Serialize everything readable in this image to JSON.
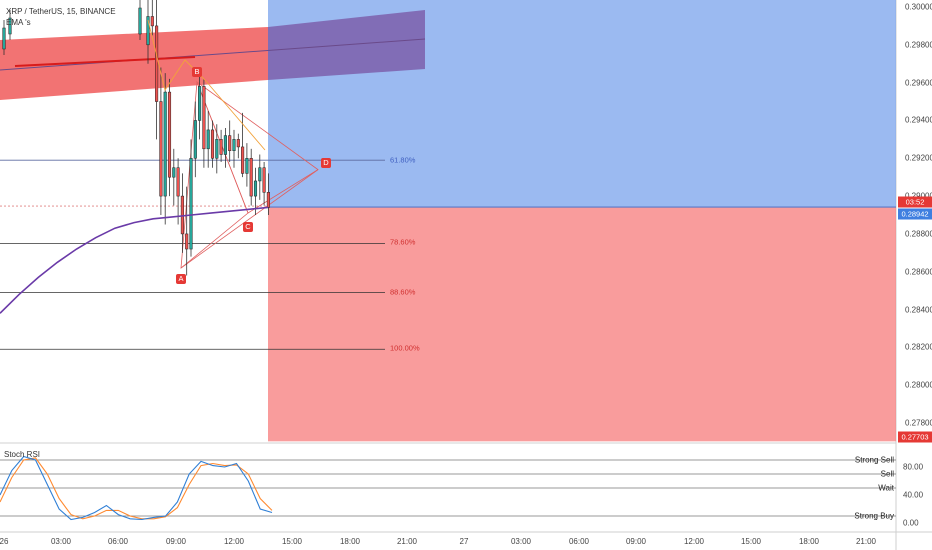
{
  "header": {
    "symbol_line": "XRP / TetherUS, 15, BINANCE",
    "ema_line": "EMA &#039;s"
  },
  "price_axis": {
    "ticks": [
      "0.30000",
      "0.29800",
      "0.29600",
      "0.29400",
      "0.29200",
      "0.29000",
      "0.28800",
      "0.28600",
      "0.28400",
      "0.28200",
      "0.28000",
      "0.27800"
    ],
    "countdown_label": "03:52",
    "current_price": "0.28942",
    "stop_price": "0.27703"
  },
  "time_axis": {
    "ticks": [
      "26",
      "03:00",
      "06:00",
      "09:00",
      "12:00",
      "15:00",
      "18:00",
      "21:00",
      "27",
      "03:00",
      "06:00",
      "09:00",
      "12:00",
      "15:00",
      "18:00",
      "21:00"
    ]
  },
  "fib_levels": {
    "f618": "61.80%",
    "f786": "78.60%",
    "f886": "88.60%",
    "f100": "100.00%"
  },
  "pattern_points": {
    "a": "A",
    "b": "B",
    "c": "C",
    "d": "D"
  },
  "rsi": {
    "title": "Stoch RSI",
    "levels": {
      "strong_sell": "Strong Sell",
      "sell": "Sell",
      "wait": "Wait",
      "strong_buy": "Strong Buy"
    },
    "ticks": [
      "80.00",
      "40.00",
      "0.00"
    ]
  },
  "colors": {
    "up_candle": "#26a69a",
    "down_candle": "#ef5350",
    "target_zone": "#7aa3ec",
    "stop_zone": "#f77b7b",
    "ema": "#6a3aa8"
  },
  "chart_data": {
    "type": "candlestick",
    "title": "XRP / TetherUS, 15, BINANCE",
    "ylim": [
      0.2765,
      0.3012
    ],
    "current_price": 0.28942,
    "stop_price": 0.27703,
    "fib_retracement_prices": {
      "61.80%": 0.2919,
      "78.60%": 0.2875,
      "88.60%": 0.2849,
      "100.00%": 0.2819
    },
    "harmonic_points": {
      "A": 0.2858,
      "B": 0.2966,
      "C": 0.2889,
      "D": 0.2914
    },
    "candles": [
      {
        "o": 0.298,
        "h": 0.3005,
        "l": 0.297,
        "c": 0.2995
      },
      {
        "o": 0.2995,
        "h": 0.3008,
        "l": 0.2985,
        "c": 0.299
      },
      {
        "o": 0.299,
        "h": 0.3004,
        "l": 0.293,
        "c": 0.295
      },
      {
        "o": 0.295,
        "h": 0.2968,
        "l": 0.289,
        "c": 0.29
      },
      {
        "o": 0.29,
        "h": 0.2965,
        "l": 0.2885,
        "c": 0.2955
      },
      {
        "o": 0.2955,
        "h": 0.2962,
        "l": 0.29,
        "c": 0.291
      },
      {
        "o": 0.291,
        "h": 0.2925,
        "l": 0.2895,
        "c": 0.2915
      },
      {
        "o": 0.2915,
        "h": 0.292,
        "l": 0.2885,
        "c": 0.29
      },
      {
        "o": 0.29,
        "h": 0.2912,
        "l": 0.287,
        "c": 0.288
      },
      {
        "o": 0.288,
        "h": 0.2905,
        "l": 0.2858,
        "c": 0.2872
      },
      {
        "o": 0.2872,
        "h": 0.293,
        "l": 0.2868,
        "c": 0.292
      },
      {
        "o": 0.292,
        "h": 0.295,
        "l": 0.291,
        "c": 0.294
      },
      {
        "o": 0.294,
        "h": 0.2966,
        "l": 0.293,
        "c": 0.2958
      },
      {
        "o": 0.2958,
        "h": 0.2962,
        "l": 0.2915,
        "c": 0.2925
      },
      {
        "o": 0.2925,
        "h": 0.2945,
        "l": 0.2915,
        "c": 0.2935
      },
      {
        "o": 0.2935,
        "h": 0.294,
        "l": 0.2915,
        "c": 0.292
      },
      {
        "o": 0.292,
        "h": 0.2938,
        "l": 0.2912,
        "c": 0.293
      },
      {
        "o": 0.293,
        "h": 0.2935,
        "l": 0.2918,
        "c": 0.2922
      },
      {
        "o": 0.2922,
        "h": 0.2936,
        "l": 0.2915,
        "c": 0.2932
      },
      {
        "o": 0.2932,
        "h": 0.294,
        "l": 0.2918,
        "c": 0.2924
      },
      {
        "o": 0.2924,
        "h": 0.2935,
        "l": 0.2915,
        "c": 0.293
      },
      {
        "o": 0.293,
        "h": 0.2933,
        "l": 0.292,
        "c": 0.2926
      },
      {
        "o": 0.2926,
        "h": 0.2944,
        "l": 0.291,
        "c": 0.2912
      },
      {
        "o": 0.2912,
        "h": 0.2928,
        "l": 0.2905,
        "c": 0.292
      },
      {
        "o": 0.292,
        "h": 0.2925,
        "l": 0.2895,
        "c": 0.29
      },
      {
        "o": 0.29,
        "h": 0.2915,
        "l": 0.289,
        "c": 0.2908
      },
      {
        "o": 0.2908,
        "h": 0.2922,
        "l": 0.2898,
        "c": 0.2915
      },
      {
        "o": 0.2915,
        "h": 0.2918,
        "l": 0.2895,
        "c": 0.2902
      },
      {
        "o": 0.2902,
        "h": 0.2912,
        "l": 0.289,
        "c": 0.2894
      }
    ],
    "ema": [
      0.2838,
      0.2848,
      0.2857,
      0.2865,
      0.2872,
      0.2878,
      0.2883,
      0.2886,
      0.2888,
      0.2889,
      0.289,
      0.2891,
      0.2892,
      0.2893,
      0.2894
    ],
    "stoch_rsi": {
      "k": [
        40,
        75,
        95,
        90,
        55,
        20,
        5,
        8,
        15,
        25,
        12,
        6,
        5,
        8,
        10,
        30,
        70,
        88,
        82,
        80,
        85,
        60,
        20,
        15
      ],
      "d": [
        30,
        65,
        90,
        93,
        70,
        35,
        12,
        6,
        10,
        18,
        18,
        10,
        6,
        6,
        9,
        22,
        55,
        82,
        85,
        82,
        83,
        70,
        35,
        18
      ],
      "levels": {
        "Strong Sell": 90,
        "Sell": 70,
        "Wait": 50,
        "Strong Buy": 10
      },
      "ylim": [
        0,
        100
      ]
    }
  }
}
